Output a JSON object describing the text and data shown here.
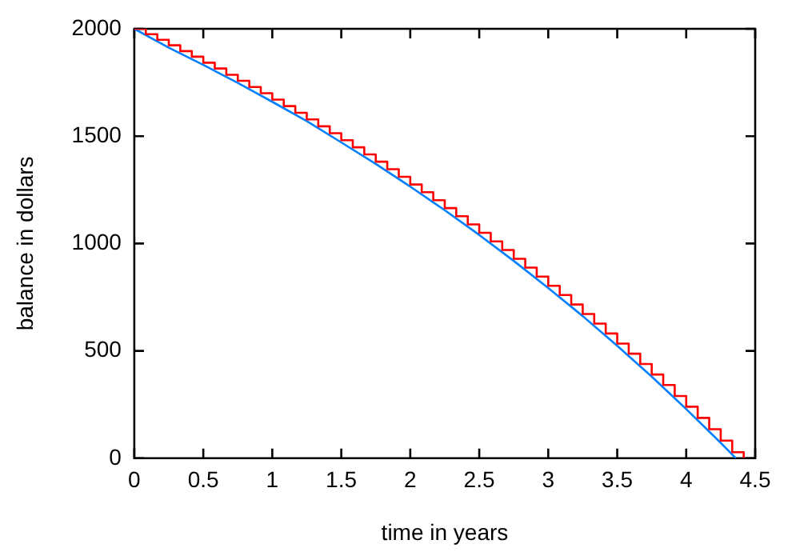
{
  "chart_data": {
    "type": "line",
    "xlabel": "time in years",
    "ylabel": "balance in dollars",
    "xlim": [
      0,
      4.5
    ],
    "xticks": [
      0,
      0.5,
      1,
      1.5,
      2,
      2.5,
      3,
      3.5,
      4,
      4.5
    ],
    "ylim": [
      0,
      2000
    ],
    "yticks": [
      0,
      500,
      1000,
      1500,
      2000
    ],
    "grid": false,
    "legend": false,
    "marker": "none",
    "series": [
      {
        "type": "step",
        "color": "#ff0000",
        "x": [
          0,
          0.0833,
          0.1667,
          0.25,
          0.3333,
          0.4167,
          0.5,
          0.5833,
          0.6667,
          0.75,
          0.8333,
          0.9167,
          1,
          1.0833,
          1.1667,
          1.25,
          1.3333,
          1.4167,
          1.5,
          1.5833,
          1.6667,
          1.75,
          1.8333,
          1.9167,
          2,
          2.0833,
          2.1667,
          2.25,
          2.3333,
          2.4167,
          2.5,
          2.5833,
          2.6667,
          2.75,
          2.8333,
          2.9167,
          3,
          3.0833,
          3.1667,
          3.25,
          3.3333,
          3.4167,
          3.5,
          3.5833,
          3.6667,
          3.75,
          3.8333,
          3.9167,
          4,
          4.0833,
          4.1667,
          4.25,
          4.3333,
          4.4167
        ],
        "values": [
          2000,
          1975,
          1949,
          1923,
          1896,
          1870,
          1842,
          1815,
          1786,
          1758,
          1729,
          1700,
          1670,
          1640,
          1609,
          1578,
          1546,
          1514,
          1481,
          1448,
          1415,
          1381,
          1346,
          1311,
          1275,
          1239,
          1202,
          1165,
          1127,
          1089,
          1050,
          1010,
          970,
          929,
          888,
          846,
          803,
          760,
          716,
          672,
          627,
          581,
          534,
          487,
          439,
          390,
          341,
          290,
          240,
          188,
          135,
          82,
          28,
          0
        ]
      },
      {
        "type": "line",
        "color": "#0080ff",
        "x": [
          0,
          0.25,
          0.5,
          0.75,
          1,
          1.25,
          1.5,
          1.75,
          2,
          2.25,
          2.5,
          2.75,
          3,
          3.25,
          3.5,
          3.75,
          4,
          4.25,
          4.36
        ],
        "values": [
          2000,
          1912,
          1832,
          1748,
          1660,
          1570,
          1471,
          1371,
          1265,
          1155,
          1040,
          919,
          793,
          662,
          524,
          380,
          229,
          72,
          0
        ]
      }
    ]
  }
}
